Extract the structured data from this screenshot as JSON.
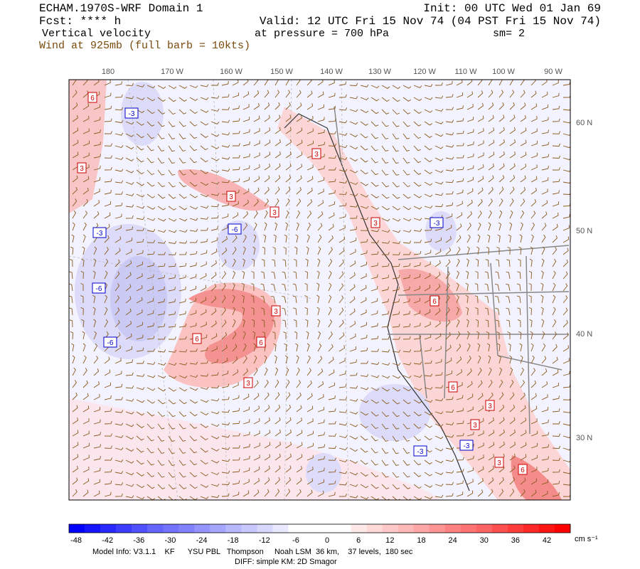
{
  "header": {
    "title": "ECHAM.1970S-WRF Domain 1",
    "init": "Init: 00 UTC Wed 01 Jan 69",
    "forecast": "Fcst: **** h",
    "valid": "Valid: 12 UTC Fri 15 Nov 74 (04 PST Fri 15 Nov 74)",
    "field": "Vertical velocity",
    "level": "at pressure =  700 hPa",
    "smoothing": "sm= 2",
    "wind": "Wind at 925mb (full barb = 10kts)"
  },
  "map": {
    "longitude_labels": [
      "180",
      "170 W",
      "160 W",
      "150 W",
      "140 W",
      "130 W",
      "120 W",
      "110 W",
      "100 W",
      "90 W"
    ],
    "latitude_labels": [
      "60 N",
      "50 N",
      "40 N",
      "30 N"
    ],
    "contour_labels": [
      6,
      3,
      3,
      3,
      3,
      3,
      3,
      6,
      6,
      3,
      6,
      6,
      3,
      3,
      3,
      6,
      -3,
      -3,
      -6,
      -3,
      -6,
      -6,
      -3,
      -3
    ]
  },
  "colorbar": {
    "ticks": [
      -48,
      -42,
      -36,
      -30,
      -24,
      -18,
      -12,
      -6,
      0,
      6,
      12,
      18,
      24,
      30,
      36,
      42
    ],
    "unit": "cm s⁻¹",
    "colors": [
      "#0000ff",
      "#1414ff",
      "#2828ff",
      "#3c3cff",
      "#5050ff",
      "#6464ff",
      "#7373ff",
      "#8282ff",
      "#9494ff",
      "#a6a6ff",
      "#b8b8ff",
      "#c8c8ff",
      "#d8d8ff",
      "#e8e8ff",
      "#ffffff",
      "#ffffff",
      "#ffffff",
      "#ffffff",
      "#ffe8e8",
      "#ffd8d8",
      "#ffc8c8",
      "#ffb8b8",
      "#ffa6a6",
      "#ff9494",
      "#ff8282",
      "#ff7373",
      "#ff6464",
      "#ff5050",
      "#ff3c3c",
      "#ff2828",
      "#ff1414",
      "#ff0000"
    ]
  },
  "footer": {
    "model_info": "Model Info: V3.1.1    KF      YSU PBL   Thompson     Noah LSM  36 km,    37 levels,  180 sec",
    "diff": "DIFF: simple KM: 2D Smagor"
  }
}
